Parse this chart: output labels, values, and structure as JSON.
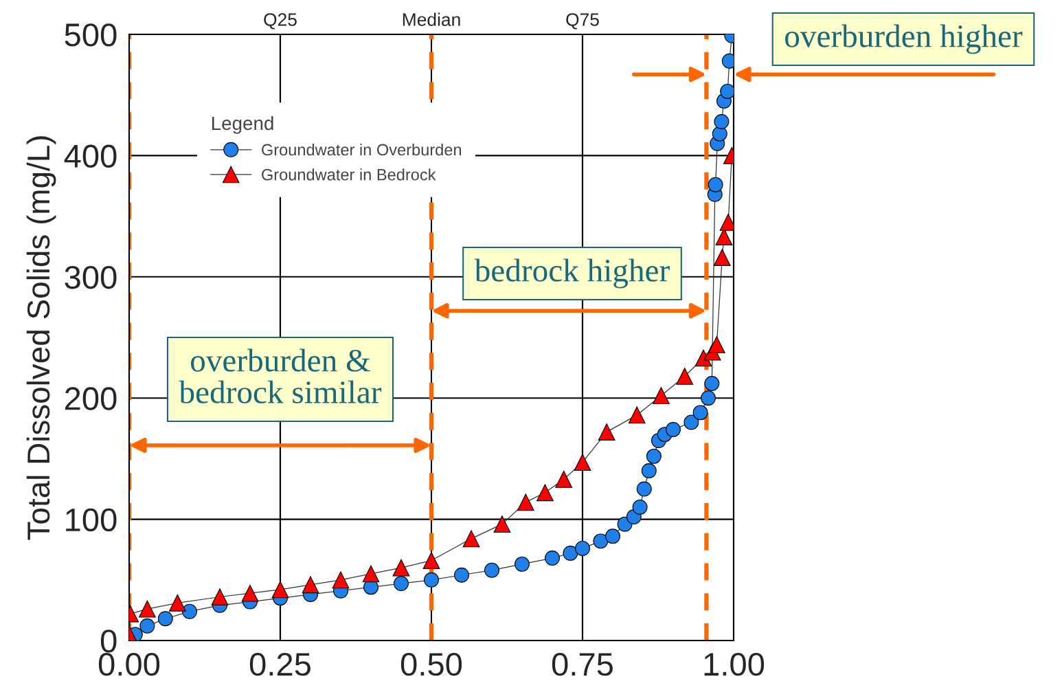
{
  "chart_data": {
    "type": "line",
    "xlabel": null,
    "ylabel": "Total Dissolved Solids (mg/L)",
    "legend_title": "Legend",
    "xlim": [
      0,
      1
    ],
    "xticks": [
      {
        "value": 0,
        "label": "0.00"
      },
      {
        "value": 0.25,
        "label": "0.25"
      },
      {
        "value": 0.5,
        "label": "0.50"
      },
      {
        "value": 0.75,
        "label": "0.75"
      },
      {
        "value": 1,
        "label": "1.00"
      }
    ],
    "ylim": [
      0,
      500
    ],
    "yticks": [
      0,
      100,
      200,
      300,
      400,
      500
    ],
    "grid": true,
    "legend": "top left",
    "series": [
      {
        "name": "Groundwater in Overburden",
        "color": "#1e80e8",
        "marker": "circle",
        "x": [
          0,
          0.01,
          0.03,
          0.06,
          0.1,
          0.15,
          0.2,
          0.25,
          0.3,
          0.35,
          0.4,
          0.45,
          0.5,
          0.55,
          0.6,
          0.65,
          0.7,
          0.73,
          0.75,
          0.78,
          0.8,
          0.82,
          0.835,
          0.845,
          0.852,
          0.86,
          0.868,
          0.876,
          0.886,
          0.9,
          0.93,
          0.945,
          0.958,
          0.964,
          0.969,
          0.97,
          0.973,
          0.977,
          0.98,
          0.984,
          0.99,
          0.993,
          0.997
        ],
        "values": [
          2,
          5,
          12,
          18,
          24,
          29,
          32,
          35,
          38,
          41,
          44,
          47,
          50,
          54,
          58,
          63,
          68,
          72,
          76,
          82,
          86,
          96,
          102,
          110,
          125,
          140,
          152,
          165,
          170,
          174,
          180,
          188,
          200,
          212,
          368,
          376,
          410,
          418,
          428,
          445,
          453,
          478,
          499
        ]
      },
      {
        "name": "Groundwater in Bedrock",
        "color": "#ff0000",
        "marker": "triangle",
        "x": [
          0,
          0.002,
          0.03,
          0.08,
          0.15,
          0.2,
          0.25,
          0.3,
          0.35,
          0.4,
          0.45,
          0.5,
          0.566,
          0.617,
          0.656,
          0.688,
          0.719,
          0.75,
          0.79,
          0.84,
          0.88,
          0.919,
          0.95,
          0.965,
          0.972,
          0.981,
          0.984,
          0.991,
          0.997
        ],
        "values": [
          5,
          22,
          26,
          31,
          36,
          39,
          42,
          46,
          50,
          55,
          60,
          66,
          84,
          96,
          114,
          122,
          133,
          147,
          172,
          186,
          202,
          218,
          233,
          238,
          244,
          316,
          333,
          345,
          400
        ]
      }
    ],
    "ref_lines": [
      {
        "axis": "x",
        "value": 0.25,
        "label": "Q25",
        "color": "#000000",
        "line_style": "solid"
      },
      {
        "axis": "x",
        "value": 0.75,
        "label": "Q75",
        "color": "#000000",
        "line_style": "solid"
      },
      {
        "axis": "x",
        "value": 0,
        "color": "#ff6600",
        "line_style": "dashed"
      },
      {
        "axis": "x",
        "value": 0.5,
        "label": "Median",
        "color": "#ff6600",
        "line_style": "dashed"
      },
      {
        "axis": "x",
        "value": 0.955,
        "color": "#ff6600",
        "line_style": "dashed"
      }
    ],
    "annotations": [
      "overburden higher",
      "bedrock higher",
      "overburden &\nbedrock similar"
    ]
  }
}
